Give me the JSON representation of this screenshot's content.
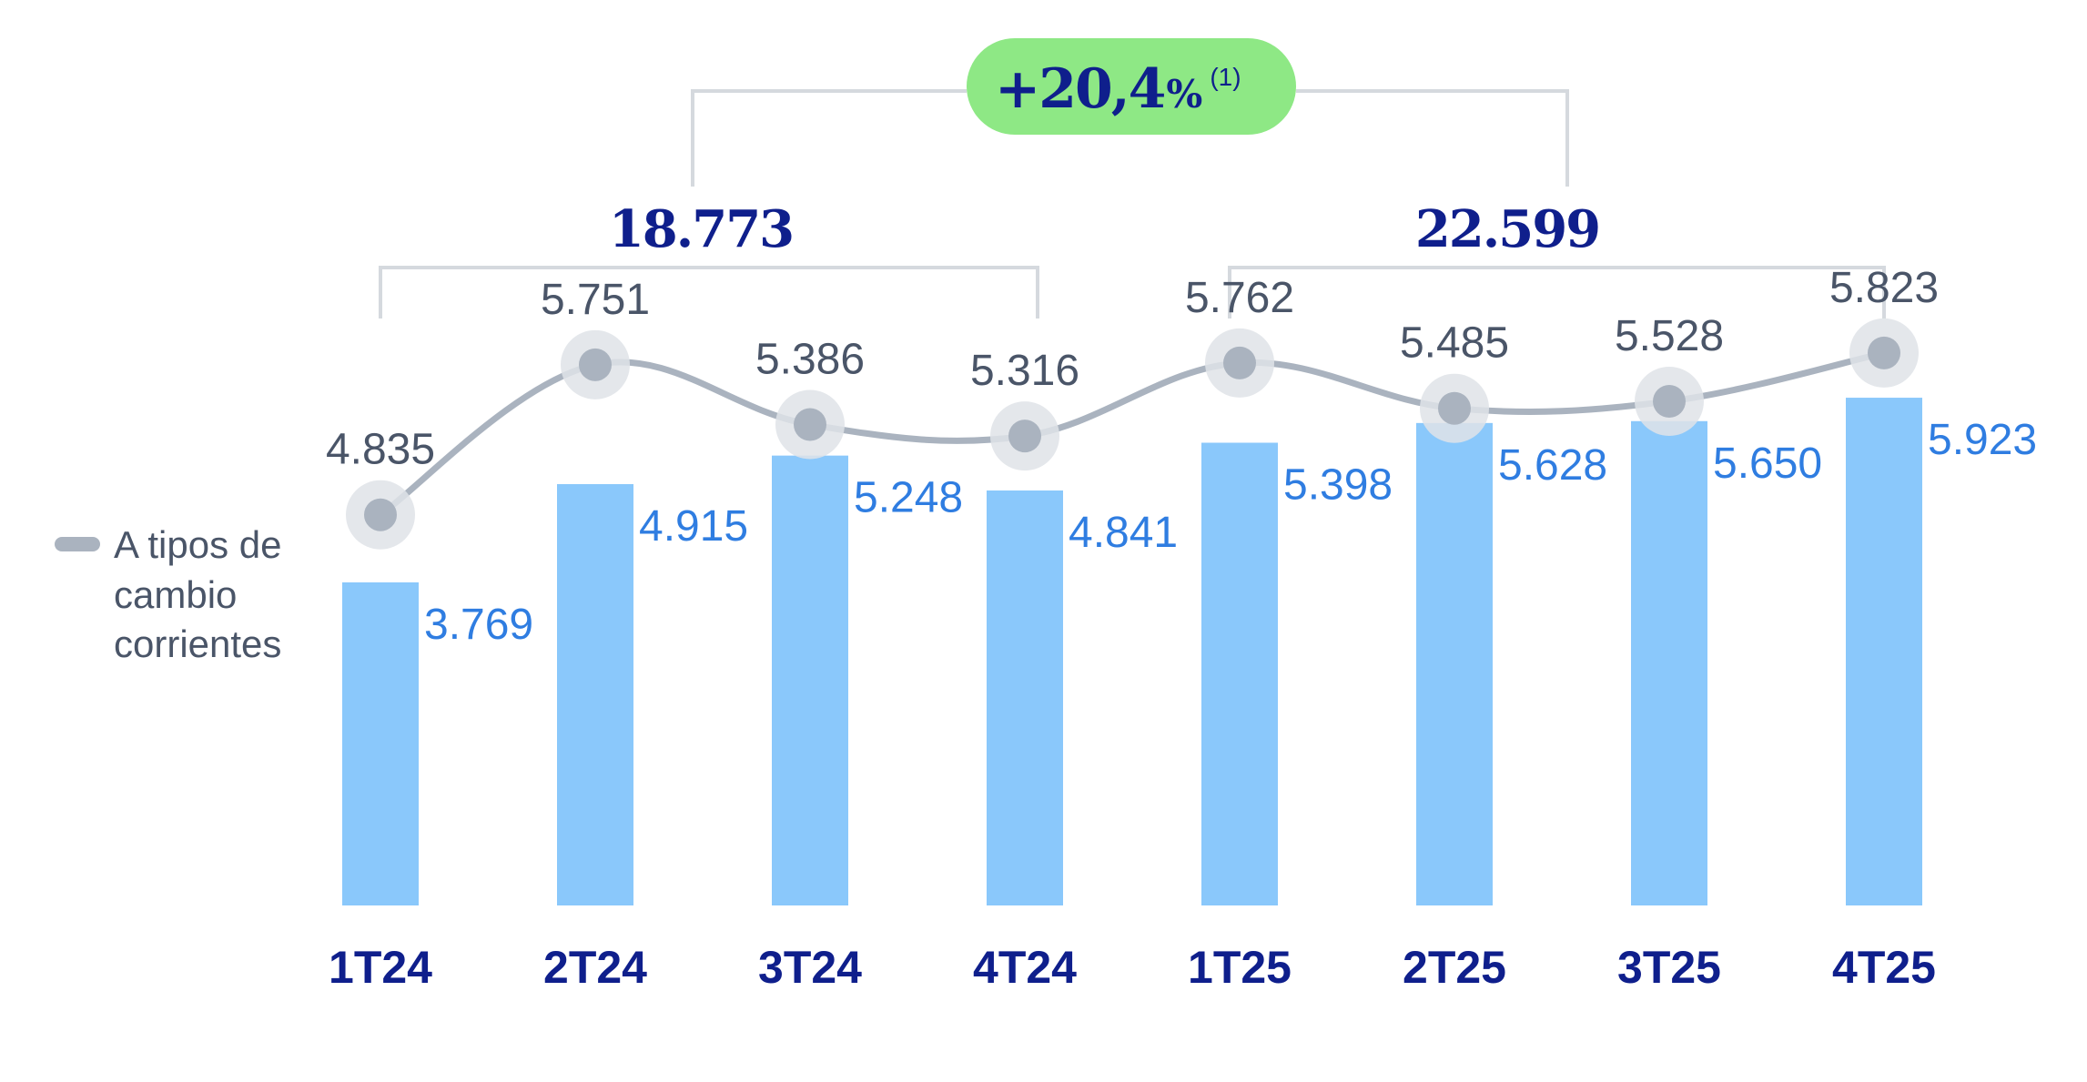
{
  "chart_data": {
    "type": "bar",
    "categories": [
      "1T24",
      "2T24",
      "3T24",
      "4T24",
      "1T25",
      "2T25",
      "3T25",
      "4T25"
    ],
    "series": [
      {
        "values": [
          3769,
          4915,
          5248,
          4841,
          5398,
          5628,
          5650,
          5923
        ],
        "labels": [
          "3.769",
          "4.915",
          "5.248",
          "4.841",
          "5.398",
          "5.628",
          "5.650",
          "5.923"
        ],
        "color": "#8ac8fb"
      },
      {
        "name": "A tipos de cambio corrientes",
        "type": "line",
        "values": [
          4835,
          5751,
          5386,
          5316,
          5762,
          5485,
          5528,
          5823
        ],
        "labels": [
          "4.835",
          "5.751",
          "5.386",
          "5.316",
          "5.762",
          "5.485",
          "5.528",
          "5.823"
        ],
        "color": "#aab3bf"
      }
    ],
    "legend_text": [
      "A tipos de",
      "cambio",
      "corrientes"
    ],
    "legend_position": "left",
    "totals": [
      {
        "label": "18.773",
        "from": "1T24",
        "to": "4T24"
      },
      {
        "label": "22.599",
        "from": "1T25",
        "to": "4T25"
      }
    ],
    "growth": {
      "value": "+20,4",
      "unit": "%",
      "note": "(1)",
      "color": "#8ee885"
    },
    "colors": {
      "category": "#0f1f8c",
      "bar_label": "#2f7de1",
      "line_label": "#4a5568",
      "bracket": "#d5d9de"
    },
    "ylim": [
      0,
      7000
    ],
    "grid": false
  }
}
